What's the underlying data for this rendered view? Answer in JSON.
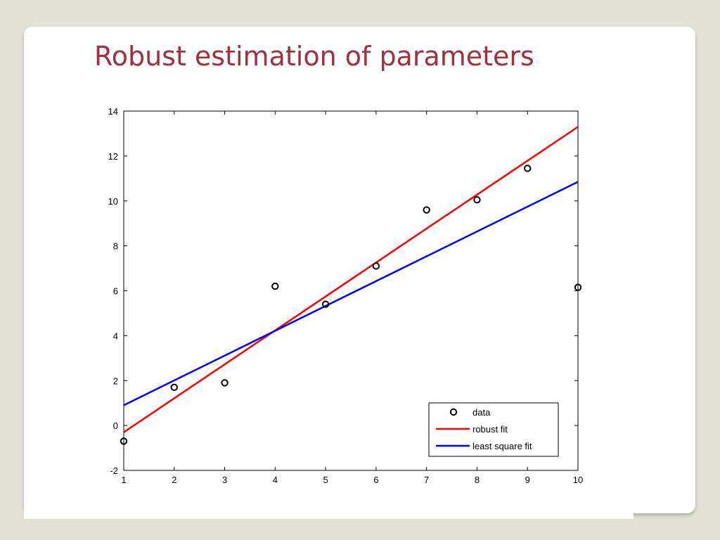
{
  "slide": {
    "title": "Robust estimation of parameters"
  },
  "colors": {
    "background": "#e3e0d6",
    "title": "#a0303c",
    "robust_fit": "#ff0000",
    "least_square_fit": "#0000ff",
    "data_marker": "#000000"
  },
  "chart_data": {
    "type": "scatter",
    "xlim": [
      1,
      10
    ],
    "ylim": [
      -2,
      14
    ],
    "x_ticks": [
      1,
      2,
      3,
      4,
      5,
      6,
      7,
      8,
      9,
      10
    ],
    "y_ticks": [
      -2,
      0,
      2,
      4,
      6,
      8,
      10,
      12,
      14
    ],
    "grid": false,
    "legend_position": "bottom-right",
    "series": [
      {
        "name": "data",
        "kind": "scatter",
        "marker": "circle",
        "x": [
          1,
          2,
          3,
          4,
          5,
          6,
          7,
          8,
          9,
          10
        ],
        "y": [
          -0.7,
          1.7,
          1.9,
          6.2,
          5.4,
          7.1,
          9.6,
          10.05,
          11.45,
          6.15
        ]
      },
      {
        "name": "robust fit",
        "kind": "line",
        "x": [
          1,
          10
        ],
        "y": [
          -0.3,
          13.3
        ]
      },
      {
        "name": "least square fit",
        "kind": "line",
        "x": [
          1,
          10
        ],
        "y": [
          0.9,
          10.85
        ]
      }
    ]
  }
}
